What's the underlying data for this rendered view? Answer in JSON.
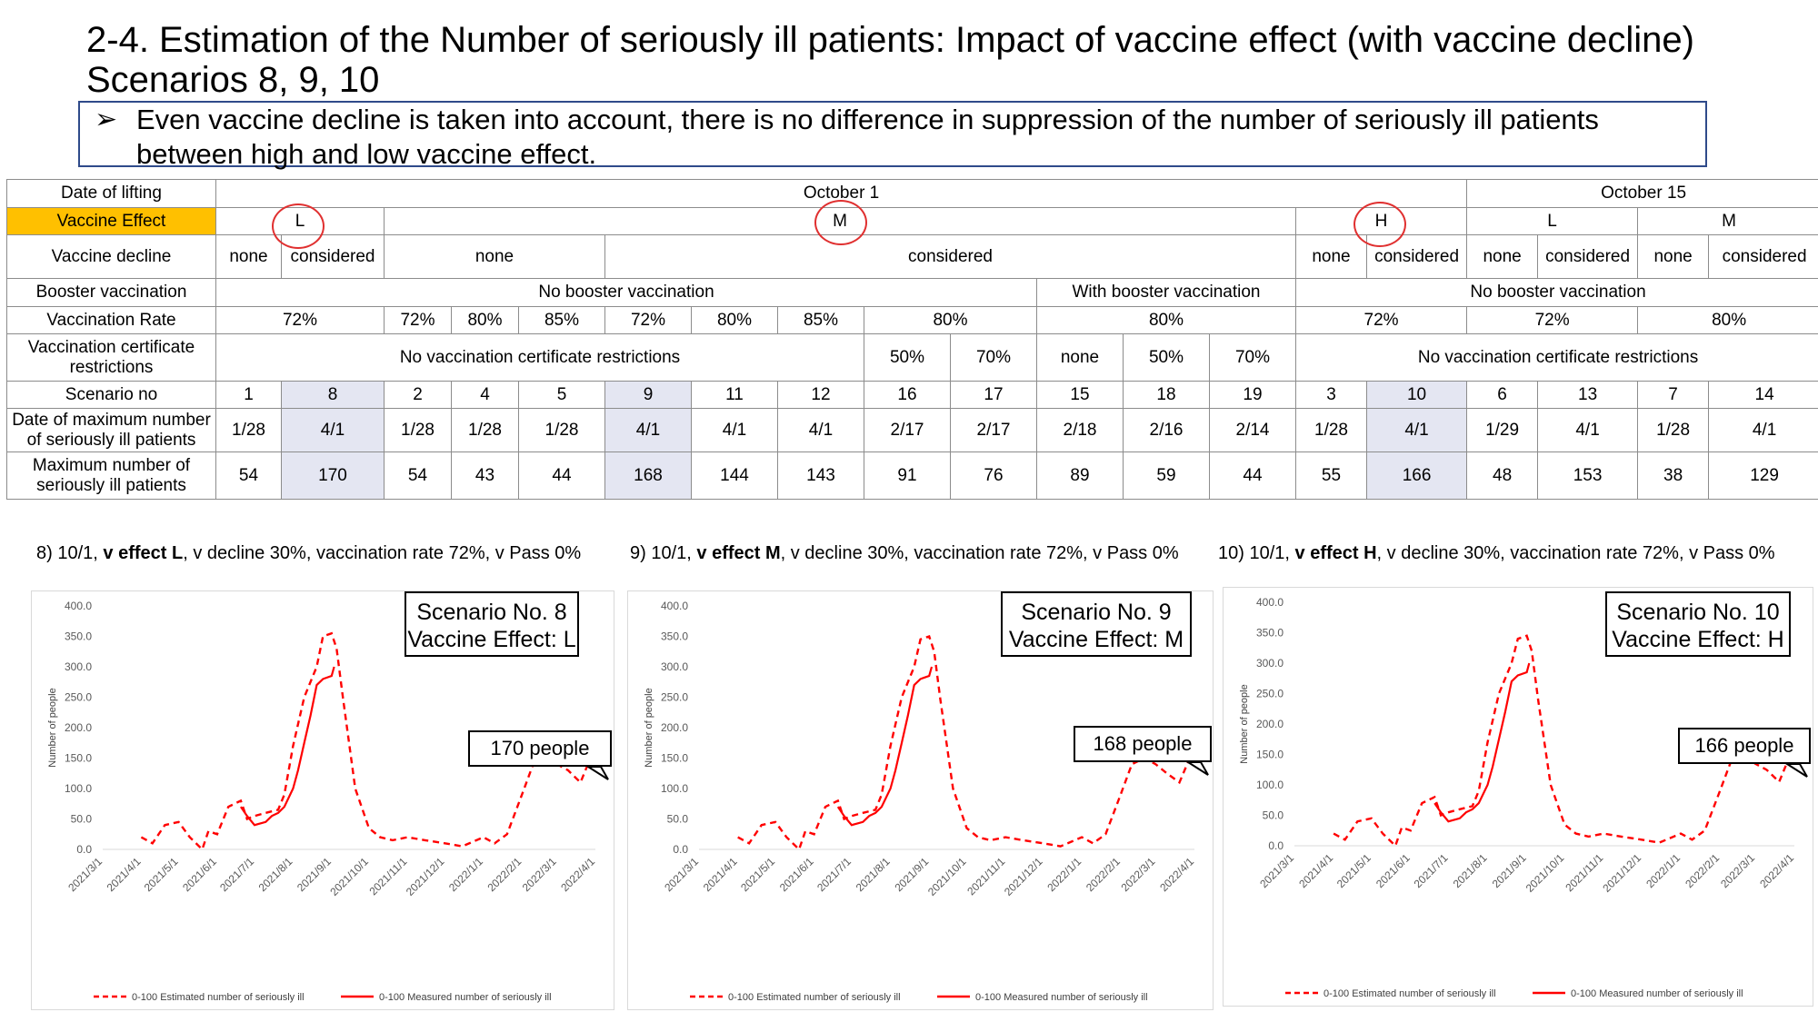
{
  "title": "2-4. Estimation of the Number of seriously ill patients: Impact of vaccine effect (with vaccine decline)",
  "subtitle": "Scenarios 8, 9, 10",
  "note": {
    "arrow": "➢",
    "text": "Even vaccine decline is taken into account, there is no difference in suppression of the number of seriously ill patients between high and low vaccine effect."
  },
  "colors": {
    "vaccine_effect_header": "#ffc000",
    "highlight": "#e4e6f2",
    "estimated_line": "#ff0000",
    "measured_line": "#ff0000",
    "circle": "#e03030",
    "note_border": "#2f4a8a"
  },
  "table": {
    "row_headers": {
      "date_lifting": "Date of lifting",
      "vaccine_effect": "Vaccine Effect",
      "vaccine_decline": "Vaccine decline",
      "booster": "Booster vaccination",
      "vaccination_rate": "Vaccination Rate",
      "certificate": "Vaccination certificate restrictions",
      "scenario": "Scenario no",
      "date_max": "Date of maximum number of seriously ill patients",
      "max_number": "Maximum number of seriously ill patients"
    },
    "date_lifting": [
      "October 1",
      "October 15"
    ],
    "vaccine_effect": [
      "L",
      "M",
      "H",
      "L",
      "M"
    ],
    "vaccine_decline": [
      "none",
      "considered",
      "none",
      "considered",
      "none",
      "considered",
      "none",
      "considered",
      "none",
      "considered"
    ],
    "booster": [
      "No booster vaccination",
      "With booster vaccination",
      "No booster vaccination"
    ],
    "vaccination_rate": [
      "72%",
      "72%",
      "80%",
      "85%",
      "72%",
      "80%",
      "85%",
      "80%",
      "80%",
      "72%",
      "72%",
      "80%"
    ],
    "certificate": [
      "No vaccination certificate restrictions",
      "50%",
      "70%",
      "none",
      "50%",
      "70%",
      "No vaccination certificate restrictions"
    ],
    "scenario": [
      "1",
      "8",
      "2",
      "4",
      "5",
      "9",
      "11",
      "12",
      "16",
      "17",
      "15",
      "18",
      "19",
      "3",
      "10",
      "6",
      "13",
      "7",
      "14"
    ],
    "date_max": [
      "1/28",
      "4/1",
      "1/28",
      "1/28",
      "1/28",
      "4/1",
      "4/1",
      "4/1",
      "2/17",
      "2/17",
      "2/18",
      "2/16",
      "2/14",
      "1/28",
      "4/1",
      "1/29",
      "4/1",
      "1/28",
      "4/1"
    ],
    "max_number": [
      "54",
      "170",
      "54",
      "43",
      "44",
      "168",
      "144",
      "143",
      "91",
      "76",
      "89",
      "59",
      "44",
      "55",
      "166",
      "48",
      "153",
      "38",
      "129"
    ]
  },
  "charts": [
    {
      "cap_pre": "8) 10/1, ",
      "cap_bold": "v effect L",
      "cap_post": ", v decline 30%, vaccination rate 72%, v Pass 0%",
      "box1": "Scenario No. 8",
      "box2": "Vaccine Effect: L",
      "callout": "170 people"
    },
    {
      "cap_pre": "9) 10/1, ",
      "cap_bold": "v effect M",
      "cap_post": ", v decline 30%, vaccination rate 72%, v Pass 0%",
      "box1": "Scenario No. 9",
      "box2": "Vaccine Effect: M",
      "callout": "168 people"
    },
    {
      "cap_pre": "10) 10/1, ",
      "cap_bold": "v effect H",
      "cap_post": ", v decline 30%, vaccination rate 72%, v Pass 0%",
      "box1": "Scenario No. 10",
      "box2": "Vaccine Effect: H",
      "callout": "166 people"
    }
  ],
  "chart_data": [
    {
      "type": "line",
      "ylabel": "Number of people",
      "ylim": [
        0,
        400
      ],
      "yticks": [
        "0.0",
        "50.0",
        "100.0",
        "150.0",
        "200.0",
        "250.0",
        "300.0",
        "350.0",
        "400.0"
      ],
      "x_ticks": [
        "2021/3/1",
        "2021/4/1",
        "2021/5/1",
        "2021/6/1",
        "2021/7/1",
        "2021/8/1",
        "2021/9/1",
        "2021/10/1",
        "2021/11/1",
        "2021/12/1",
        "2022/1/1",
        "2022/2/1",
        "2022/3/1",
        "2022/4/1"
      ],
      "legend_position": "bottom",
      "series": [
        {
          "name": "0-100 Estimated number of seriously ill",
          "style": "dashed",
          "x": [
            "2021/4/1",
            "2021/4/10",
            "2021/4/20",
            "2021/5/1",
            "2021/5/10",
            "2021/5/20",
            "2021/5/25",
            "2021/6/1",
            "2021/6/10",
            "2021/6/20",
            "2021/6/25",
            "2021/7/1",
            "2021/7/10",
            "2021/7/20",
            "2021/7/25",
            "2021/8/1",
            "2021/8/10",
            "2021/8/20",
            "2021/8/25",
            "2021/9/1",
            "2021/9/5",
            "2021/9/10",
            "2021/9/20",
            "2021/10/1",
            "2021/10/10",
            "2021/10/20",
            "2021/11/1",
            "2021/11/15",
            "2021/12/1",
            "2021/12/15",
            "2022/1/1",
            "2022/1/10",
            "2022/1/20",
            "2022/2/1",
            "2022/2/10",
            "2022/2/20",
            "2022/3/1",
            "2022/3/10",
            "2022/3/20",
            "2022/4/1"
          ],
          "y": [
            20,
            10,
            40,
            45,
            20,
            0,
            30,
            25,
            70,
            80,
            50,
            55,
            60,
            65,
            90,
            170,
            250,
            300,
            350,
            355,
            330,
            250,
            100,
            35,
            20,
            15,
            20,
            15,
            10,
            5,
            20,
            10,
            25,
            90,
            140,
            155,
            140,
            130,
            110,
            170
          ]
        },
        {
          "name": "0-100 Measured number of seriously ill",
          "style": "solid",
          "x": [
            "2021/6/20",
            "2021/6/25",
            "2021/7/1",
            "2021/7/10",
            "2021/7/15",
            "2021/7/20",
            "2021/7/25",
            "2021/8/1",
            "2021/8/5",
            "2021/8/10",
            "2021/8/15",
            "2021/8/20",
            "2021/8/25",
            "2021/9/1",
            "2021/9/3"
          ],
          "y": [
            70,
            55,
            40,
            45,
            55,
            60,
            70,
            100,
            130,
            175,
            220,
            270,
            280,
            285,
            300
          ]
        }
      ]
    },
    {
      "type": "line",
      "ylabel": "Number of people",
      "ylim": [
        0,
        400
      ],
      "yticks": [
        "0.0",
        "50.0",
        "100.0",
        "150.0",
        "200.0",
        "250.0",
        "300.0",
        "350.0",
        "400.0"
      ],
      "x_ticks": [
        "2021/3/1",
        "2021/4/1",
        "2021/5/1",
        "2021/6/1",
        "2021/7/1",
        "2021/8/1",
        "2021/9/1",
        "2021/10/1",
        "2021/11/1",
        "2021/12/1",
        "2022/1/1",
        "2022/2/1",
        "2022/3/1",
        "2022/4/1"
      ],
      "legend_position": "bottom",
      "series": [
        {
          "name": "0-100 Estimated number of seriously ill",
          "style": "dashed",
          "x": [
            "2021/4/1",
            "2021/4/10",
            "2021/4/20",
            "2021/5/1",
            "2021/5/10",
            "2021/5/20",
            "2021/5/25",
            "2021/6/1",
            "2021/6/10",
            "2021/6/20",
            "2021/6/25",
            "2021/7/1",
            "2021/7/10",
            "2021/7/20",
            "2021/7/25",
            "2021/8/1",
            "2021/8/10",
            "2021/8/20",
            "2021/8/25",
            "2021/9/1",
            "2021/9/5",
            "2021/9/10",
            "2021/9/20",
            "2021/10/1",
            "2021/10/10",
            "2021/10/20",
            "2021/11/1",
            "2021/11/15",
            "2021/12/1",
            "2021/12/15",
            "2022/1/1",
            "2022/1/10",
            "2022/1/20",
            "2022/2/1",
            "2022/2/10",
            "2022/2/20",
            "2022/3/1",
            "2022/3/10",
            "2022/3/20",
            "2022/4/1"
          ],
          "y": [
            20,
            10,
            40,
            45,
            20,
            0,
            30,
            25,
            70,
            80,
            50,
            55,
            60,
            65,
            90,
            170,
            250,
            300,
            345,
            350,
            325,
            245,
            100,
            35,
            20,
            15,
            20,
            15,
            10,
            5,
            20,
            10,
            25,
            90,
            140,
            150,
            140,
            125,
            110,
            168
          ]
        },
        {
          "name": "0-100 Measured number of seriously ill",
          "style": "solid",
          "x": [
            "2021/6/20",
            "2021/6/25",
            "2021/7/1",
            "2021/7/10",
            "2021/7/15",
            "2021/7/20",
            "2021/7/25",
            "2021/8/1",
            "2021/8/5",
            "2021/8/10",
            "2021/8/15",
            "2021/8/20",
            "2021/8/25",
            "2021/9/1",
            "2021/9/3"
          ],
          "y": [
            70,
            55,
            40,
            45,
            55,
            60,
            70,
            100,
            130,
            175,
            220,
            270,
            280,
            285,
            300
          ]
        }
      ]
    },
    {
      "type": "line",
      "ylabel": "Number of people",
      "ylim": [
        0,
        400
      ],
      "yticks": [
        "0.0",
        "50.0",
        "100.0",
        "150.0",
        "200.0",
        "250.0",
        "300.0",
        "350.0",
        "400.0"
      ],
      "x_ticks": [
        "2021/3/1",
        "2021/4/1",
        "2021/5/1",
        "2021/6/1",
        "2021/7/1",
        "2021/8/1",
        "2021/9/1",
        "2021/10/1",
        "2021/11/1",
        "2021/12/1",
        "2022/1/1",
        "2022/2/1",
        "2022/3/1",
        "2022/4/1"
      ],
      "legend_position": "bottom",
      "series": [
        {
          "name": "0-100 Estimated number of seriously ill",
          "style": "dashed",
          "x": [
            "2021/4/1",
            "2021/4/10",
            "2021/4/20",
            "2021/5/1",
            "2021/5/10",
            "2021/5/20",
            "2021/5/25",
            "2021/6/1",
            "2021/6/10",
            "2021/6/20",
            "2021/6/25",
            "2021/7/1",
            "2021/7/10",
            "2021/7/20",
            "2021/7/25",
            "2021/8/1",
            "2021/8/10",
            "2021/8/20",
            "2021/8/25",
            "2021/9/1",
            "2021/9/5",
            "2021/9/10",
            "2021/9/20",
            "2021/10/1",
            "2021/10/10",
            "2021/10/20",
            "2021/11/1",
            "2021/11/15",
            "2021/12/1",
            "2021/12/15",
            "2022/1/1",
            "2022/1/10",
            "2022/1/20",
            "2022/2/1",
            "2022/2/10",
            "2022/2/20",
            "2022/3/1",
            "2022/3/10",
            "2022/3/20",
            "2022/4/1"
          ],
          "y": [
            20,
            10,
            40,
            45,
            20,
            0,
            30,
            25,
            70,
            80,
            50,
            55,
            60,
            65,
            90,
            170,
            250,
            300,
            340,
            345,
            320,
            240,
            100,
            35,
            20,
            15,
            20,
            15,
            10,
            5,
            20,
            10,
            25,
            90,
            140,
            150,
            135,
            125,
            105,
            166
          ]
        },
        {
          "name": "0-100 Measured number of seriously ill",
          "style": "solid",
          "x": [
            "2021/6/20",
            "2021/6/25",
            "2021/7/1",
            "2021/7/10",
            "2021/7/15",
            "2021/7/20",
            "2021/7/25",
            "2021/8/1",
            "2021/8/5",
            "2021/8/10",
            "2021/8/15",
            "2021/8/20",
            "2021/8/25",
            "2021/9/1",
            "2021/9/3"
          ],
          "y": [
            70,
            55,
            40,
            45,
            55,
            60,
            70,
            100,
            130,
            175,
            220,
            270,
            280,
            285,
            300
          ]
        }
      ]
    }
  ]
}
